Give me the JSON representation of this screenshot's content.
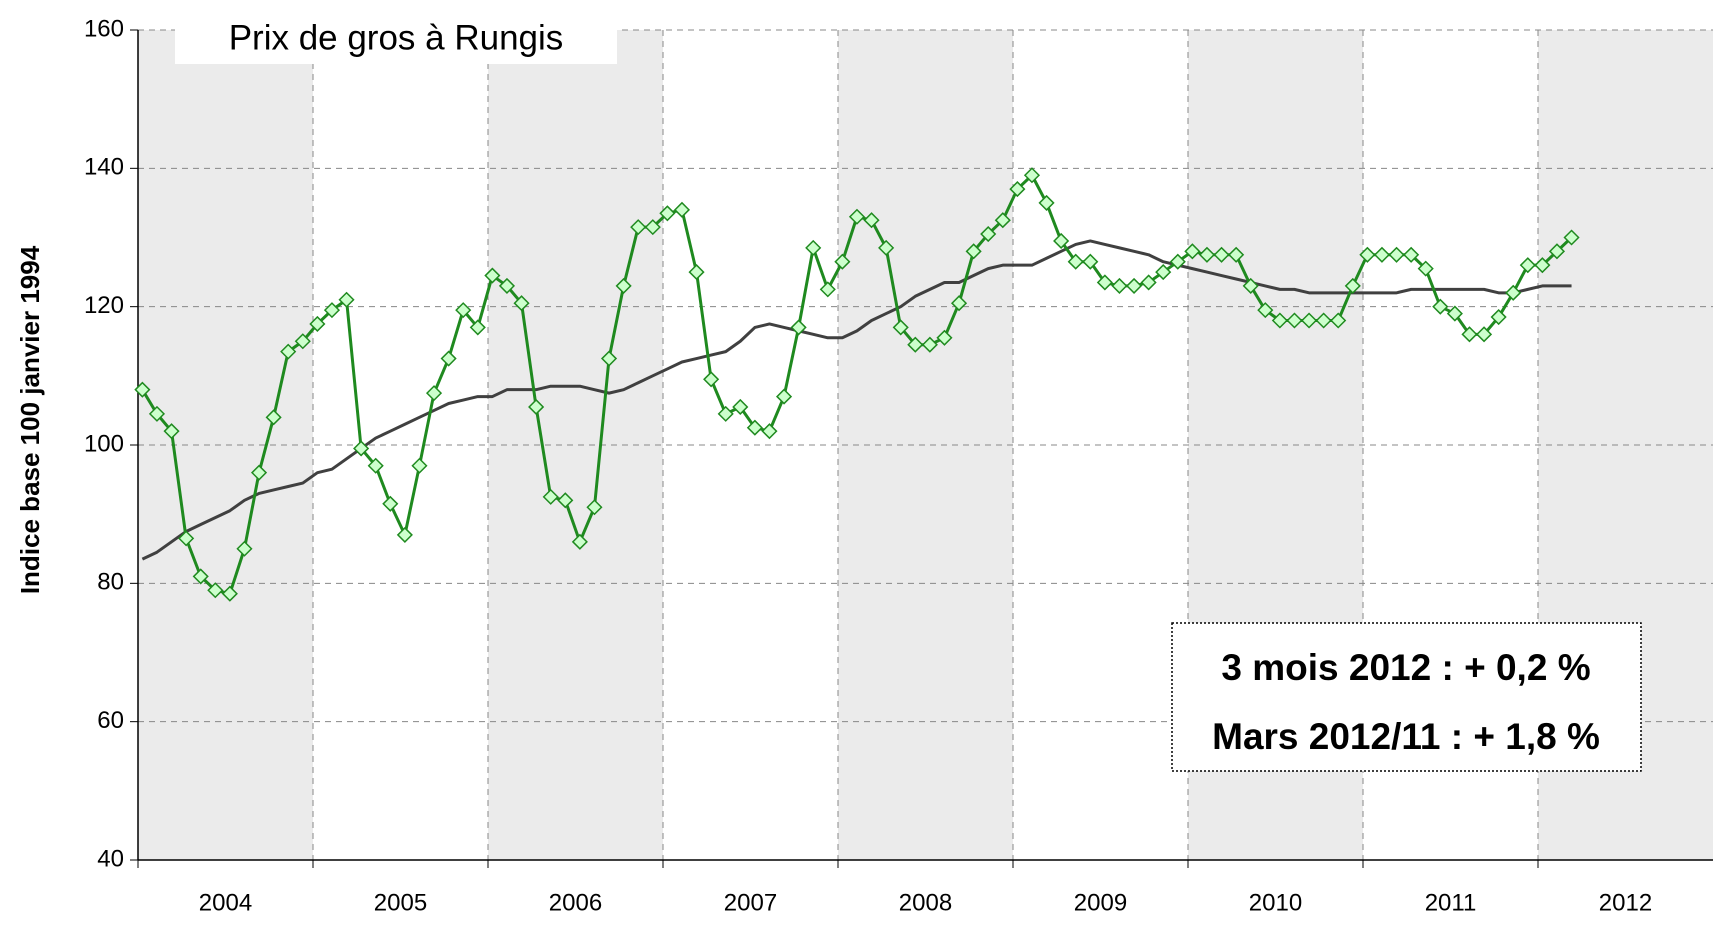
{
  "chart_data": {
    "type": "line",
    "title": "Prix de gros à Rungis",
    "y_label": "Indice base 100 janvier 1994",
    "annotations": [
      "3 mois 2012 : + 0,2 %",
      "Mars 2012/11 : + 1,8 %"
    ],
    "categories": [
      "2004",
      null,
      null,
      null,
      null,
      null,
      null,
      null,
      null,
      null,
      null,
      null,
      "2005",
      null,
      null,
      null,
      null,
      null,
      null,
      null,
      null,
      null,
      null,
      null,
      "2006",
      null,
      null,
      null,
      null,
      null,
      null,
      null,
      null,
      null,
      null,
      null,
      "2007",
      null,
      null,
      null,
      null,
      null,
      null,
      null,
      null,
      null,
      null,
      null,
      "2008",
      null,
      null,
      null,
      null,
      null,
      null,
      null,
      null,
      null,
      null,
      null,
      "2009",
      null,
      null,
      null,
      null,
      null,
      null,
      null,
      null,
      null,
      null,
      null,
      "2010",
      null,
      null,
      null,
      null,
      null,
      null,
      null,
      null,
      null,
      null,
      null,
      "2011",
      null,
      null,
      null,
      null,
      null,
      null,
      null,
      null,
      null,
      null,
      null,
      "2012",
      null,
      null,
      null,
      null,
      null,
      null,
      null,
      null,
      null,
      null,
      null
    ],
    "series": [
      {
        "color": "#1f8a1f",
        "marker": "diamond",
        "marker_fill": "#ccffcc",
        "values": [
          108,
          104.5,
          102,
          86.5,
          81,
          79,
          78.5,
          85,
          96,
          104,
          113.5,
          115,
          117.5,
          119.5,
          121,
          99.5,
          97,
          91.5,
          87,
          97,
          107.5,
          112.5,
          119.5,
          117,
          124.5,
          123,
          120.5,
          105.5,
          92.5,
          92,
          86,
          91,
          112.5,
          123,
          131.5,
          131.5,
          133.5,
          134,
          125,
          109.5,
          104.5,
          105.5,
          102.5,
          102,
          107,
          117,
          128.5,
          122.5,
          126.5,
          133,
          132.5,
          128.5,
          117,
          114.5,
          114.5,
          115.5,
          120.5,
          128,
          130.5,
          132.5,
          137,
          139,
          135,
          129.5,
          126.5,
          126.5,
          123.5,
          123,
          123,
          123.5,
          125,
          126.5,
          128,
          127.5,
          127.5,
          127.5,
          123,
          119.5,
          118,
          118,
          118,
          118,
          118,
          123,
          127.5,
          127.5,
          127.5,
          127.5,
          125.5,
          120,
          119,
          116,
          116,
          118.5,
          122,
          126,
          126,
          128,
          130,
          null,
          null,
          null,
          null,
          null,
          null,
          null,
          null,
          null
        ]
      },
      {
        "color": "#404040",
        "values": [
          83.5,
          84.5,
          86,
          87.5,
          88.5,
          89.5,
          90.5,
          92,
          93,
          93.5,
          94,
          94.5,
          96,
          96.5,
          98,
          99.5,
          101,
          102,
          103,
          104,
          105,
          106,
          106.5,
          107,
          107,
          108,
          108,
          108,
          108.5,
          108.5,
          108.5,
          108,
          107.5,
          108,
          109,
          110,
          111,
          112,
          112.5,
          113,
          113.5,
          115,
          117,
          117.5,
          117,
          116.5,
          116,
          115.5,
          115.5,
          116.5,
          118,
          119,
          120,
          121.5,
          122.5,
          123.5,
          123.5,
          124.5,
          125.5,
          126,
          126,
          126,
          127,
          128,
          129,
          129.5,
          129,
          128.5,
          128,
          127.5,
          126.5,
          126,
          125.5,
          125,
          124.5,
          124,
          123.5,
          123,
          122.5,
          122.5,
          122,
          122,
          122,
          122,
          122,
          122,
          122,
          122.5,
          122.5,
          122.5,
          122.5,
          122.5,
          122.5,
          122,
          122,
          122.5,
          123,
          123,
          123,
          null,
          null,
          null,
          null,
          null,
          null,
          null,
          null,
          null
        ]
      }
    ],
    "ylim": [
      40,
      160
    ],
    "yticks": [
      40,
      60,
      80,
      100,
      120,
      140,
      160
    ],
    "grid": true,
    "band_color": "#ebebeb",
    "annotation_color": "#1a6e00"
  }
}
